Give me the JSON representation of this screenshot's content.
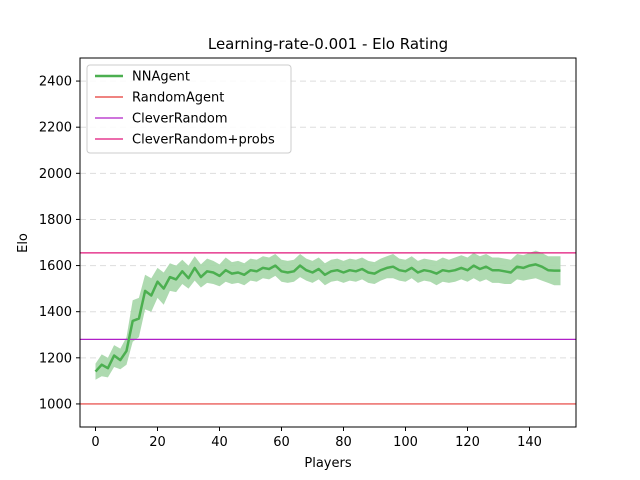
{
  "chart_data": {
    "type": "line",
    "title": "Learning-rate-0.001 - Elo Rating",
    "xlabel": "Players",
    "ylabel": "Elo",
    "xlim": [
      -5,
      155
    ],
    "ylim": [
      900,
      2500
    ],
    "xticks": [
      0,
      20,
      40,
      60,
      80,
      100,
      120,
      140
    ],
    "yticks": [
      1000,
      1200,
      1400,
      1600,
      1800,
      2000,
      2200,
      2400
    ],
    "grid": {
      "y": true,
      "x": false,
      "style": "dashed"
    },
    "legend_position": "top-left",
    "series": [
      {
        "name": "NNAgent",
        "kind": "line_with_band",
        "color": "#4caf50",
        "band_color": "#a5d6a7",
        "x": [
          0,
          2,
          4,
          6,
          8,
          10,
          12,
          14,
          16,
          18,
          20,
          22,
          24,
          26,
          28,
          30,
          32,
          34,
          36,
          38,
          40,
          42,
          44,
          46,
          48,
          50,
          52,
          54,
          56,
          58,
          60,
          62,
          64,
          66,
          68,
          70,
          72,
          74,
          76,
          78,
          80,
          82,
          84,
          86,
          88,
          90,
          92,
          94,
          96,
          98,
          100,
          102,
          104,
          106,
          108,
          110,
          112,
          114,
          116,
          118,
          120,
          122,
          124,
          126,
          128,
          130,
          132,
          134,
          136,
          138,
          140,
          142,
          144,
          146,
          148,
          150
        ],
        "values": [
          1140,
          1170,
          1155,
          1210,
          1190,
          1230,
          1360,
          1370,
          1490,
          1470,
          1530,
          1500,
          1550,
          1540,
          1575,
          1545,
          1590,
          1550,
          1575,
          1570,
          1555,
          1580,
          1565,
          1570,
          1560,
          1580,
          1575,
          1590,
          1585,
          1600,
          1575,
          1570,
          1575,
          1600,
          1580,
          1570,
          1585,
          1560,
          1575,
          1580,
          1570,
          1580,
          1575,
          1585,
          1570,
          1565,
          1580,
          1590,
          1595,
          1580,
          1575,
          1590,
          1570,
          1580,
          1575,
          1565,
          1580,
          1575,
          1580,
          1590,
          1580,
          1600,
          1585,
          1595,
          1580,
          1580,
          1575,
          1570,
          1595,
          1590,
          1600,
          1605,
          1595,
          1580,
          1578,
          1578
        ],
        "lower": [
          1105,
          1120,
          1115,
          1160,
          1150,
          1170,
          1270,
          1290,
          1410,
          1400,
          1460,
          1430,
          1490,
          1485,
          1520,
          1500,
          1535,
          1505,
          1525,
          1520,
          1510,
          1530,
          1520,
          1525,
          1515,
          1535,
          1530,
          1545,
          1540,
          1555,
          1530,
          1525,
          1530,
          1550,
          1535,
          1525,
          1540,
          1515,
          1530,
          1535,
          1525,
          1535,
          1530,
          1540,
          1525,
          1520,
          1535,
          1545,
          1545,
          1535,
          1530,
          1545,
          1525,
          1535,
          1530,
          1515,
          1530,
          1525,
          1530,
          1540,
          1530,
          1545,
          1530,
          1540,
          1525,
          1525,
          1520,
          1520,
          1540,
          1535,
          1540,
          1545,
          1535,
          1525,
          1515,
          1515
        ],
        "upper": [
          1175,
          1215,
          1200,
          1255,
          1240,
          1290,
          1450,
          1460,
          1560,
          1545,
          1590,
          1570,
          1610,
          1600,
          1625,
          1600,
          1640,
          1605,
          1630,
          1620,
          1605,
          1635,
          1615,
          1620,
          1610,
          1630,
          1625,
          1640,
          1635,
          1650,
          1625,
          1620,
          1625,
          1650,
          1630,
          1620,
          1635,
          1610,
          1625,
          1630,
          1620,
          1630,
          1625,
          1635,
          1620,
          1615,
          1630,
          1640,
          1650,
          1630,
          1625,
          1640,
          1620,
          1630,
          1625,
          1620,
          1635,
          1625,
          1635,
          1645,
          1635,
          1655,
          1640,
          1650,
          1635,
          1635,
          1630,
          1625,
          1650,
          1645,
          1655,
          1665,
          1655,
          1640,
          1640,
          1640
        ]
      },
      {
        "name": "RandomAgent",
        "kind": "hline",
        "y": 1000,
        "color": "#e53935"
      },
      {
        "name": "CleverRandom",
        "kind": "hline",
        "y": 1280,
        "color": "#b020c8"
      },
      {
        "name": "CleverRandom+probs",
        "kind": "hline",
        "y": 1655,
        "color": "#e0157a"
      }
    ]
  }
}
